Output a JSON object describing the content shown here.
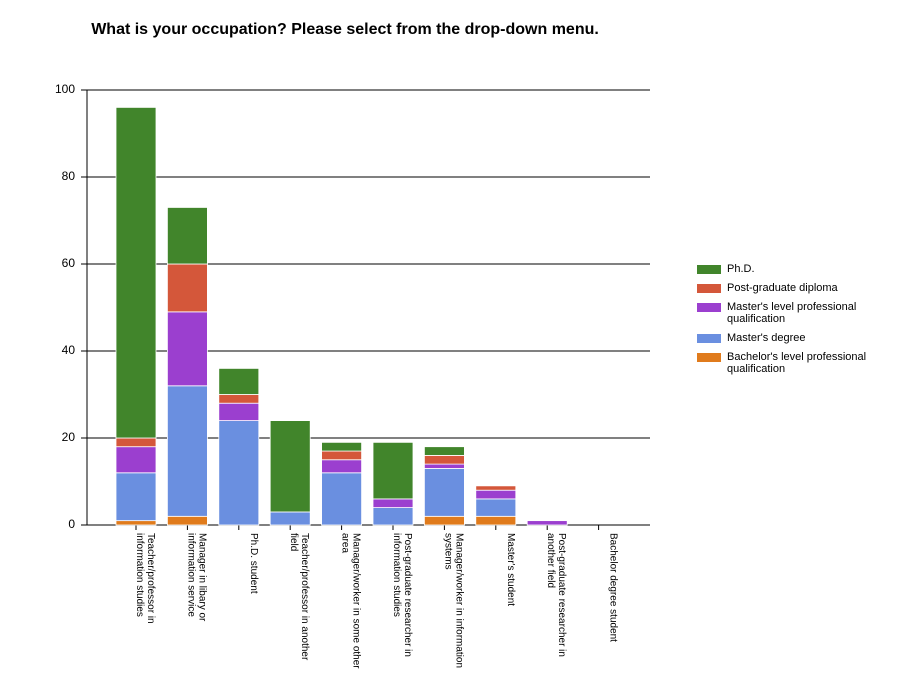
{
  "chart_data": {
    "type": "stacked_bar",
    "title": "What is your occupation? Please select from the drop-down menu.",
    "categories": [
      "Teacher/professor in information studies",
      "Manager in libary or information service",
      "Ph.D. student",
      "Teacher/professor in another field",
      "Manager/worker in some other area",
      "Post-graduate researcher in information studies",
      "Manager/worker in information systems",
      "Master's student",
      "Post-graduate researcher in another field",
      "Bachelor degree student"
    ],
    "series": [
      {
        "name": "Bachelor's level professional qualification",
        "color": "#e07b1c",
        "values": [
          1,
          2,
          0,
          0,
          0,
          0,
          2,
          2,
          0,
          0
        ]
      },
      {
        "name": "Master's degree",
        "color": "#6a8fe0",
        "values": [
          11,
          30,
          24,
          3,
          12,
          4,
          11,
          4,
          0,
          0
        ]
      },
      {
        "name": "Master's level professional qualification",
        "color": "#9b3fcf",
        "values": [
          6,
          17,
          4,
          0,
          3,
          2,
          1,
          2,
          1,
          0
        ]
      },
      {
        "name": "Post-graduate diploma",
        "color": "#d4573a",
        "values": [
          2,
          11,
          2,
          0,
          2,
          0,
          2,
          1,
          0,
          0
        ]
      },
      {
        "name": "Ph.D.",
        "color": "#41852b",
        "values": [
          76,
          13,
          6,
          21,
          2,
          13,
          2,
          0,
          0,
          0
        ]
      }
    ],
    "ylim": [
      0,
      100
    ],
    "yticks": [
      0,
      20,
      40,
      60,
      80,
      100
    ],
    "grid": true,
    "legend": "right"
  }
}
